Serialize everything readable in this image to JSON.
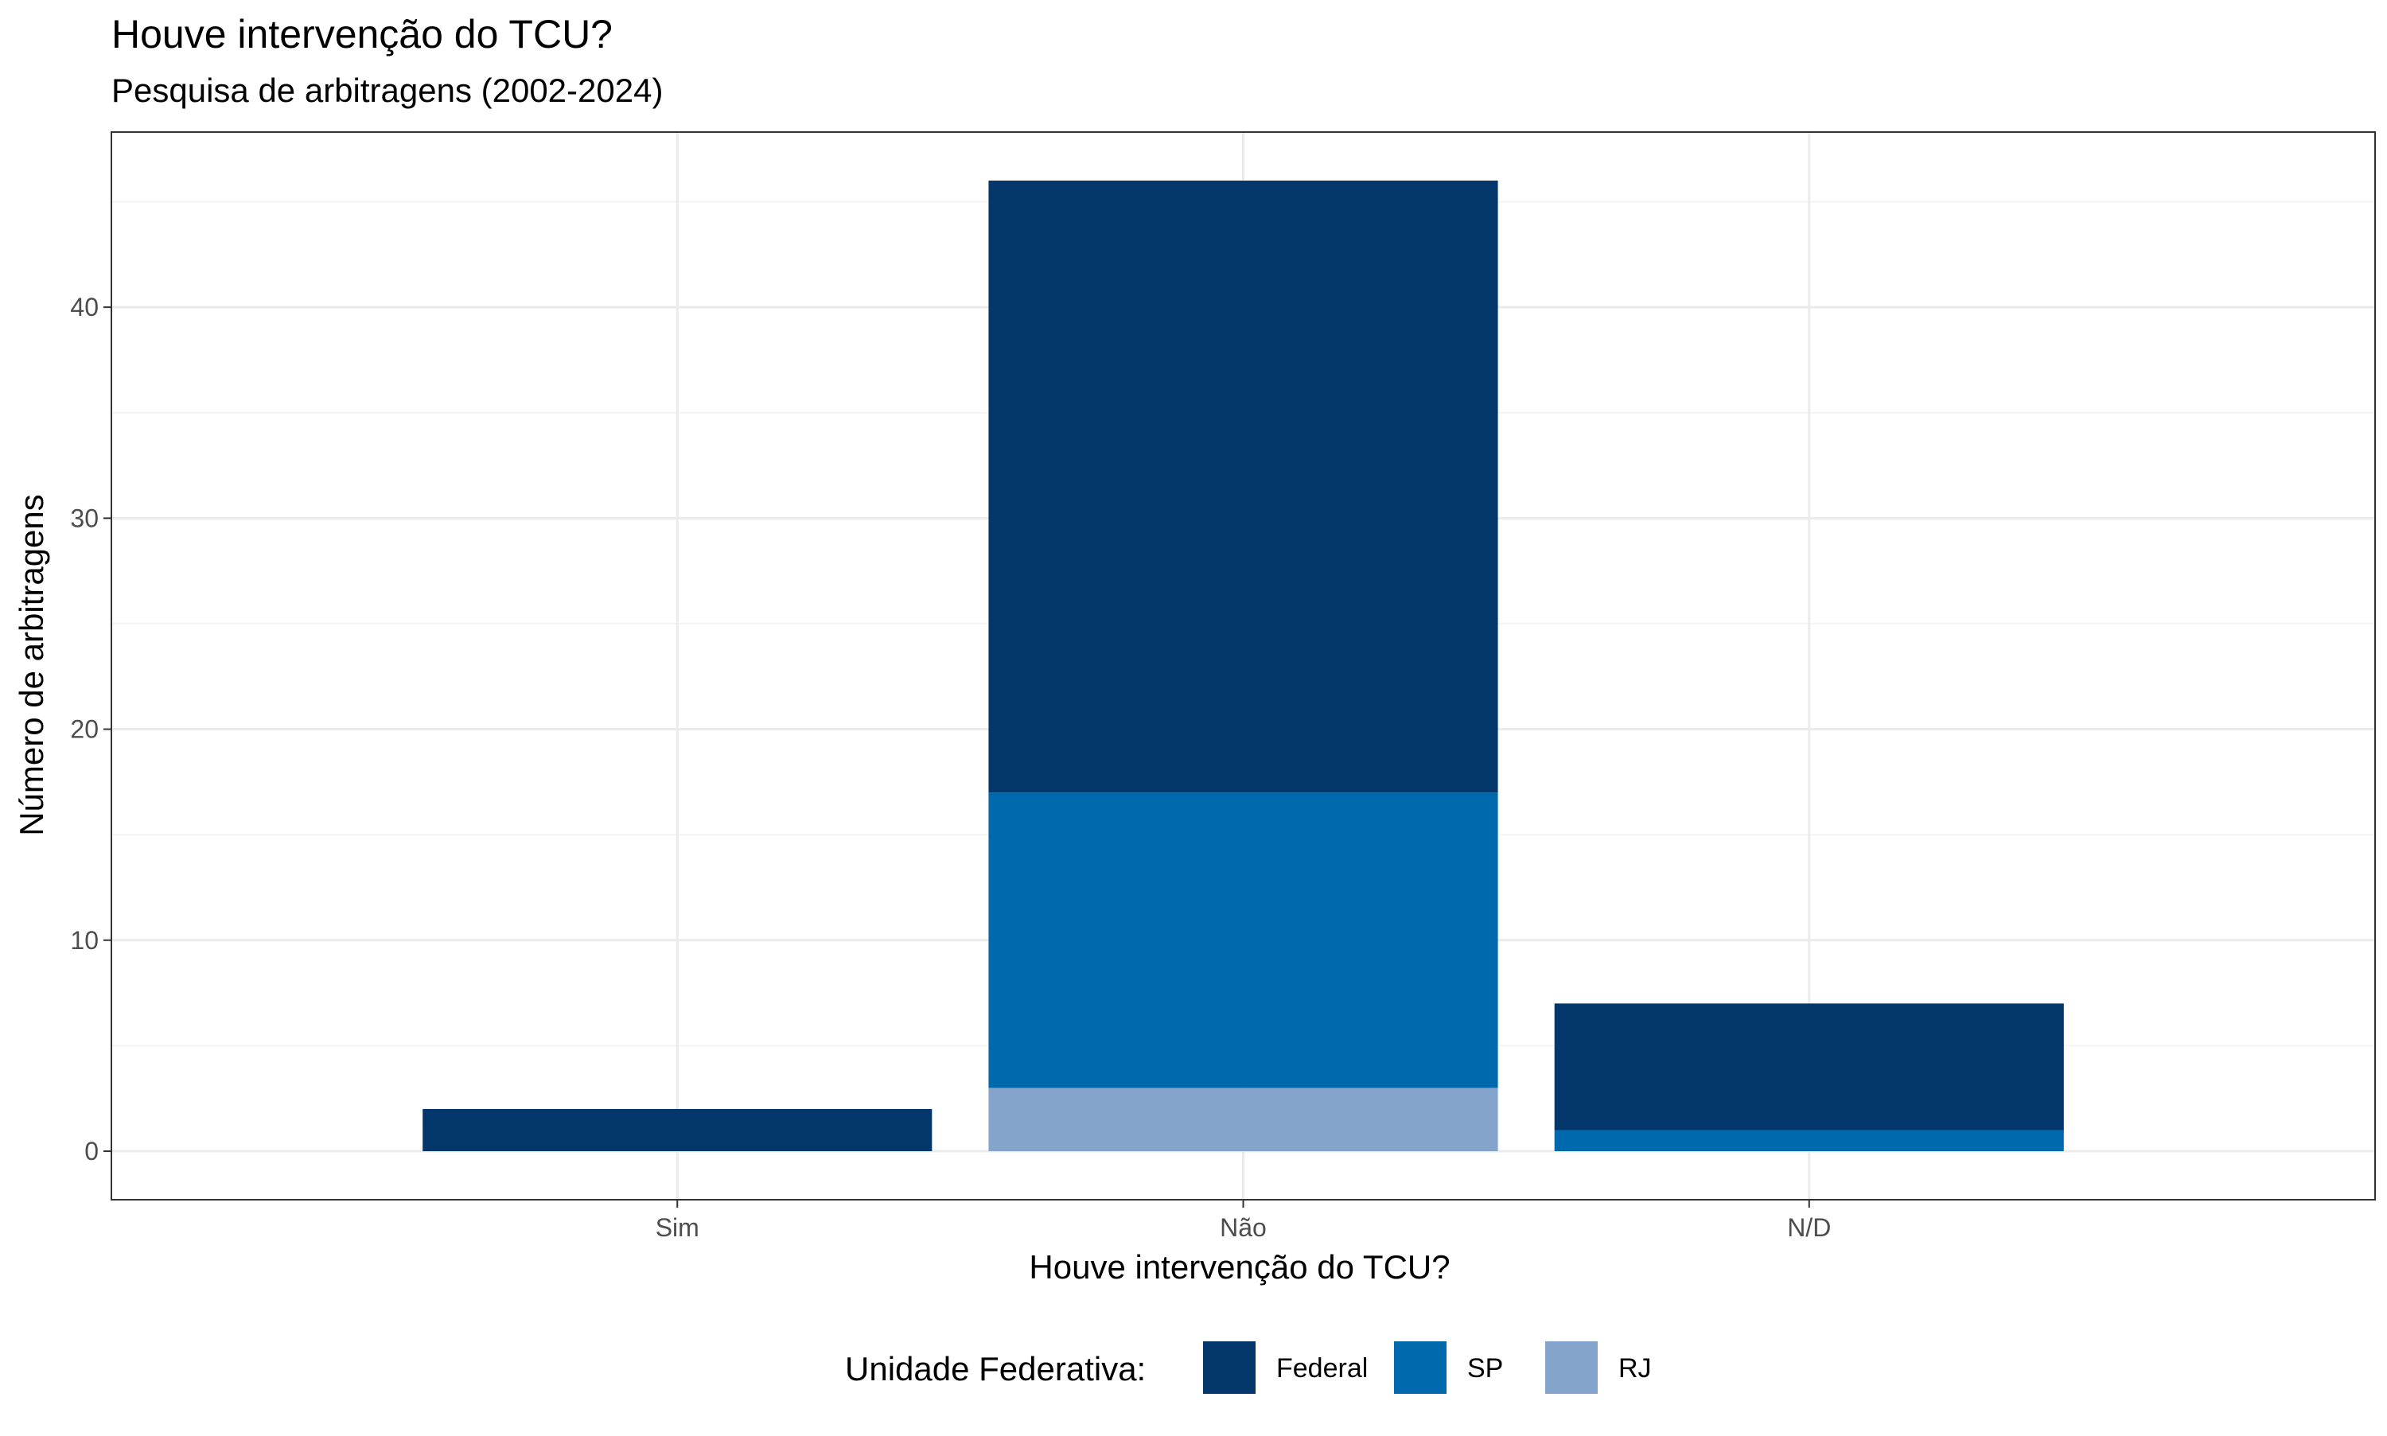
{
  "chart_data": {
    "type": "bar",
    "stacked": true,
    "title": "Houve intervenção do TCU?",
    "subtitle": "Pesquisa de arbitragens (2002-2024)",
    "xlabel": "Houve intervenção do TCU?",
    "ylabel": "Número de arbitragens",
    "categories": [
      "Sim",
      "Não",
      "N/D"
    ],
    "series": [
      {
        "name": "Federal",
        "color": "#03366A",
        "values": [
          2,
          29,
          6
        ]
      },
      {
        "name": "SP",
        "color": "#0069AD",
        "values": [
          0,
          14,
          1
        ]
      },
      {
        "name": "RJ",
        "color": "#85A4CB",
        "values": [
          0,
          3,
          0
        ]
      }
    ],
    "ylim": [
      -2.3,
      48.3
    ],
    "yticks": [
      0,
      10,
      20,
      30,
      40
    ],
    "ytick_labels": [
      "0",
      "10",
      "20",
      "30",
      "40"
    ],
    "grid": true,
    "legend": {
      "title": "Unidade Federativa:",
      "position": "bottom",
      "items": [
        "Federal",
        "SP",
        "RJ"
      ]
    }
  }
}
